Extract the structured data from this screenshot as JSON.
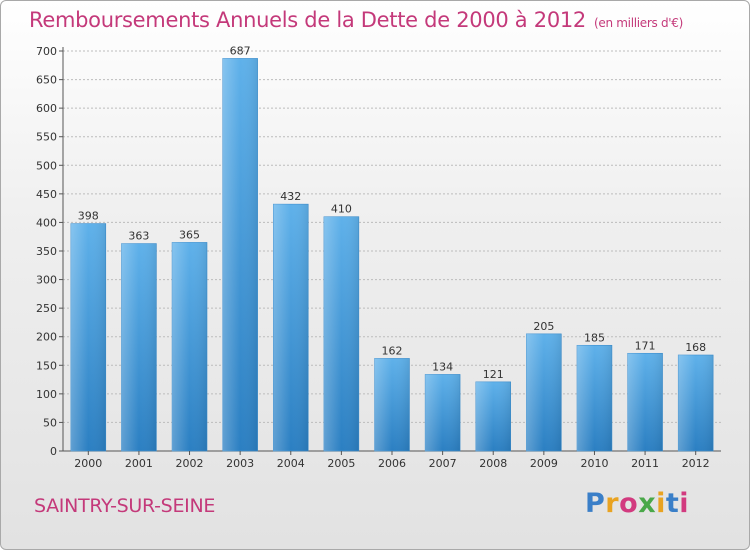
{
  "title": "Remboursements Annuels de la Dette de 2000 à 2012",
  "subtitle": "(en milliers d'€)",
  "city": "SAINTRY-SUR-SEINE",
  "logo": {
    "text": "Proxiti",
    "letter_colors": [
      "#3a7fc8",
      "#e9a321",
      "#d23a7f",
      "#4aa849",
      "#e9a321",
      "#3a7fc8",
      "#d23a7f"
    ]
  },
  "colors": {
    "title": "#c4397a",
    "bar_light": "#5fb1ea",
    "bar_dark": "#2b7fc2",
    "grid": "#bcbcbc"
  },
  "chart_data": {
    "type": "bar",
    "categories": [
      "2000",
      "2001",
      "2002",
      "2003",
      "2004",
      "2005",
      "2006",
      "2007",
      "2008",
      "2009",
      "2010",
      "2011",
      "2012"
    ],
    "values": [
      398,
      363,
      365,
      687,
      432,
      410,
      162,
      134,
      121,
      205,
      185,
      171,
      168
    ],
    "ylim": [
      0,
      700
    ],
    "yticks": [
      0,
      50,
      100,
      150,
      200,
      250,
      300,
      350,
      400,
      450,
      500,
      550,
      600,
      650,
      700
    ],
    "grid": true
  }
}
